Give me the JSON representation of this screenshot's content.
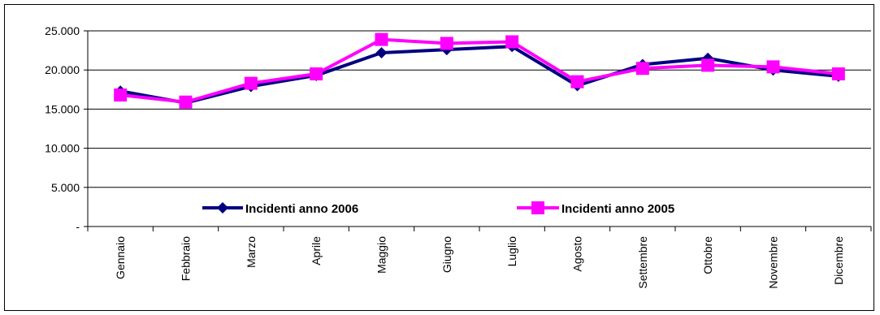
{
  "chart_data": {
    "type": "line",
    "title": "",
    "xlabel": "",
    "ylabel": "",
    "categories": [
      "Gennaio",
      "Febbraio",
      "Marzo",
      "Aprile",
      "Maggio",
      "Giugno",
      "Luglio",
      "Agosto",
      "Settembre",
      "Ottobre",
      "Novembre",
      "Dicembre"
    ],
    "ylim": [
      0,
      25000
    ],
    "y_ticks": [
      0,
      5000,
      10000,
      15000,
      20000,
      25000
    ],
    "y_tick_labels": [
      "-",
      "5.000",
      "10.000",
      "15.000",
      "20.000",
      "25.000"
    ],
    "grid": "horizontal",
    "legend_position": "inside-bottom",
    "series": [
      {
        "name": "Incidenti anno 2006",
        "color": "#000080",
        "marker": "diamond",
        "values": [
          17300,
          15800,
          17900,
          19300,
          22200,
          22600,
          23000,
          18000,
          20700,
          21500,
          20000,
          19200
        ]
      },
      {
        "name": "Incidenti anno 2005",
        "color": "#ff00ff",
        "marker": "square",
        "values": [
          16800,
          15900,
          18300,
          19500,
          23900,
          23400,
          23600,
          18500,
          20200,
          20600,
          20400,
          19500
        ]
      }
    ]
  }
}
